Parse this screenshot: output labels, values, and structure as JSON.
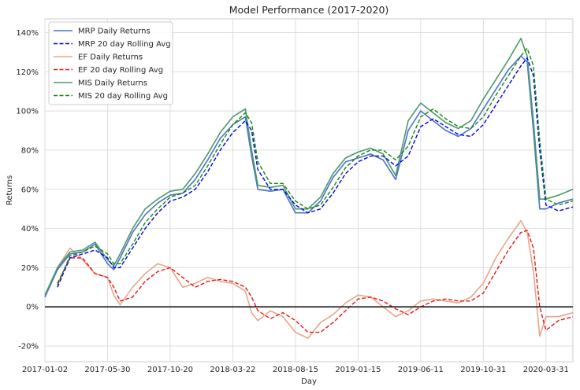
{
  "chart_data": {
    "type": "line",
    "title": "Model Performance (2017-2020)",
    "xlabel": "Day",
    "ylabel": "Returns",
    "x_ticks": [
      "2017-01-02",
      "2017-05-30",
      "2017-10-20",
      "2018-03-22",
      "2018-08-15",
      "2019-01-15",
      "2019-06-11",
      "2019-10-31",
      "2020-03-31"
    ],
    "x_tick_index": [
      0,
      100,
      200,
      300,
      400,
      500,
      600,
      700,
      800
    ],
    "x_range": [
      0,
      843
    ],
    "ylim": [
      -28,
      147
    ],
    "y_ticks": [
      -20,
      0,
      20,
      40,
      60,
      80,
      100,
      120,
      140
    ],
    "y_tick_labels": [
      "-20%",
      "0%",
      "20%",
      "40%",
      "60%",
      "80%",
      "100%",
      "120%",
      "140%"
    ],
    "grid": true,
    "legend_position": "top-left",
    "zero_line": 0,
    "x_anchor_index": [
      0,
      20,
      40,
      60,
      80,
      100,
      110,
      120,
      140,
      160,
      180,
      200,
      220,
      240,
      260,
      280,
      300,
      320,
      330,
      340,
      360,
      380,
      400,
      420,
      440,
      460,
      480,
      500,
      520,
      540,
      560,
      580,
      600,
      620,
      640,
      660,
      680,
      700,
      720,
      740,
      760,
      770,
      780,
      790,
      800,
      820,
      843
    ],
    "series": [
      {
        "name": "MRP Daily Returns",
        "color": "#4c72c8",
        "style": "solid",
        "values": [
          5,
          19,
          27,
          28,
          32,
          22,
          19,
          25,
          38,
          47,
          53,
          57,
          58,
          65,
          75,
          86,
          93,
          97,
          77,
          60,
          59,
          60,
          48,
          48,
          54,
          66,
          74,
          76,
          78,
          75,
          65,
          90,
          100,
          95,
          90,
          87,
          91,
          101,
          111,
          121,
          128,
          125,
          90,
          50,
          50,
          53,
          55
        ]
      },
      {
        "name": "MRP 20 day Rolling Avg",
        "color": "#0000ee",
        "style": "dashed",
        "values": [
          null,
          10,
          25,
          27,
          29,
          25,
          20,
          20,
          30,
          40,
          48,
          54,
          56,
          60,
          69,
          80,
          89,
          95,
          90,
          70,
          60,
          60,
          52,
          48,
          50,
          58,
          68,
          74,
          77,
          77,
          72,
          77,
          92,
          96,
          92,
          88,
          87,
          93,
          103,
          113,
          123,
          127,
          118,
          80,
          52,
          49,
          51
        ]
      },
      {
        "name": "EF Daily Returns",
        "color": "#e8a68a",
        "style": "solid",
        "values": [
          5,
          20,
          30,
          24,
          17,
          15,
          6,
          1,
          10,
          17,
          22,
          20,
          10,
          12,
          15,
          13,
          12,
          8,
          -3,
          -7,
          -2,
          -5,
          -13,
          -16,
          -8,
          -4,
          2,
          6,
          5,
          0,
          -5,
          -2,
          3,
          4,
          3,
          2,
          5,
          12,
          25,
          35,
          44,
          38,
          18,
          -15,
          -5,
          -5,
          -3
        ]
      },
      {
        "name": "EF 20 day Rolling Avg",
        "color": "#ee1111",
        "style": "dashed",
        "values": [
          null,
          12,
          25,
          25,
          17,
          15,
          10,
          3,
          5,
          13,
          18,
          20,
          15,
          10,
          13,
          14,
          13,
          10,
          5,
          -2,
          -6,
          -3,
          -7,
          -13,
          -13,
          -8,
          -2,
          4,
          5,
          3,
          -1,
          -4,
          0,
          3,
          4,
          3,
          3,
          7,
          18,
          29,
          38,
          39,
          30,
          0,
          -12,
          -7,
          -5
        ]
      },
      {
        "name": "MIS Daily Returns",
        "color": "#4a9a6a",
        "style": "solid",
        "values": [
          6,
          20,
          28,
          29,
          33,
          24,
          21,
          27,
          40,
          50,
          55,
          59,
          60,
          68,
          78,
          89,
          97,
          101,
          80,
          62,
          61,
          62,
          50,
          50,
          56,
          68,
          76,
          79,
          81,
          78,
          67,
          95,
          104,
          99,
          94,
          91,
          95,
          106,
          116,
          126,
          137,
          128,
          95,
          55,
          55,
          57,
          60
        ]
      },
      {
        "name": "MIS 20 day Rolling Avg",
        "color": "#118811",
        "style": "dashed",
        "values": [
          null,
          11,
          26,
          28,
          31,
          27,
          22,
          22,
          32,
          43,
          50,
          56,
          58,
          62,
          72,
          83,
          93,
          99,
          94,
          74,
          63,
          63,
          54,
          50,
          52,
          61,
          71,
          77,
          80,
          80,
          75,
          82,
          97,
          101,
          96,
          92,
          91,
          97,
          108,
          118,
          128,
          132,
          123,
          85,
          55,
          52,
          54
        ]
      }
    ]
  }
}
